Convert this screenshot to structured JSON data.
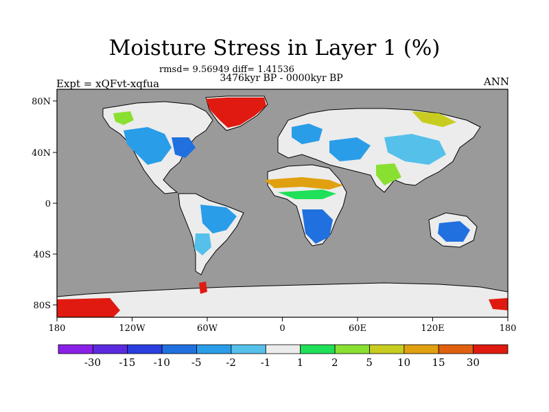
{
  "title": "Moisture Stress in Layer 1 (%)",
  "stats_line": "rmsd= 9.56949 diff= 1.41536",
  "period": "3476kyr BP - 0000kyr BP",
  "experiment": "Expt = xQFvt-xqfua",
  "season": "ANN",
  "map": {
    "ocean_color": "#9a9a9a",
    "land_base_color": "#ececec",
    "x_ticks": [
      "180",
      "120W",
      "60W",
      "0",
      "60E",
      "120E",
      "180"
    ],
    "y_ticks": [
      "80N",
      "40N",
      "0",
      "40S",
      "80S"
    ]
  },
  "colorbar": {
    "colors": [
      "#8a1fe8",
      "#5b2ae0",
      "#2a3ee0",
      "#2070e0",
      "#2a9de8",
      "#55c0ea",
      "#ececec",
      "#1fe058",
      "#8ae030",
      "#c8cc20",
      "#e0a010",
      "#e06010",
      "#e01a10"
    ],
    "labels": [
      "-30",
      "-15",
      "-10",
      "-5",
      "-2",
      "-1",
      "1",
      "2",
      "5",
      "10",
      "15",
      "30"
    ]
  }
}
